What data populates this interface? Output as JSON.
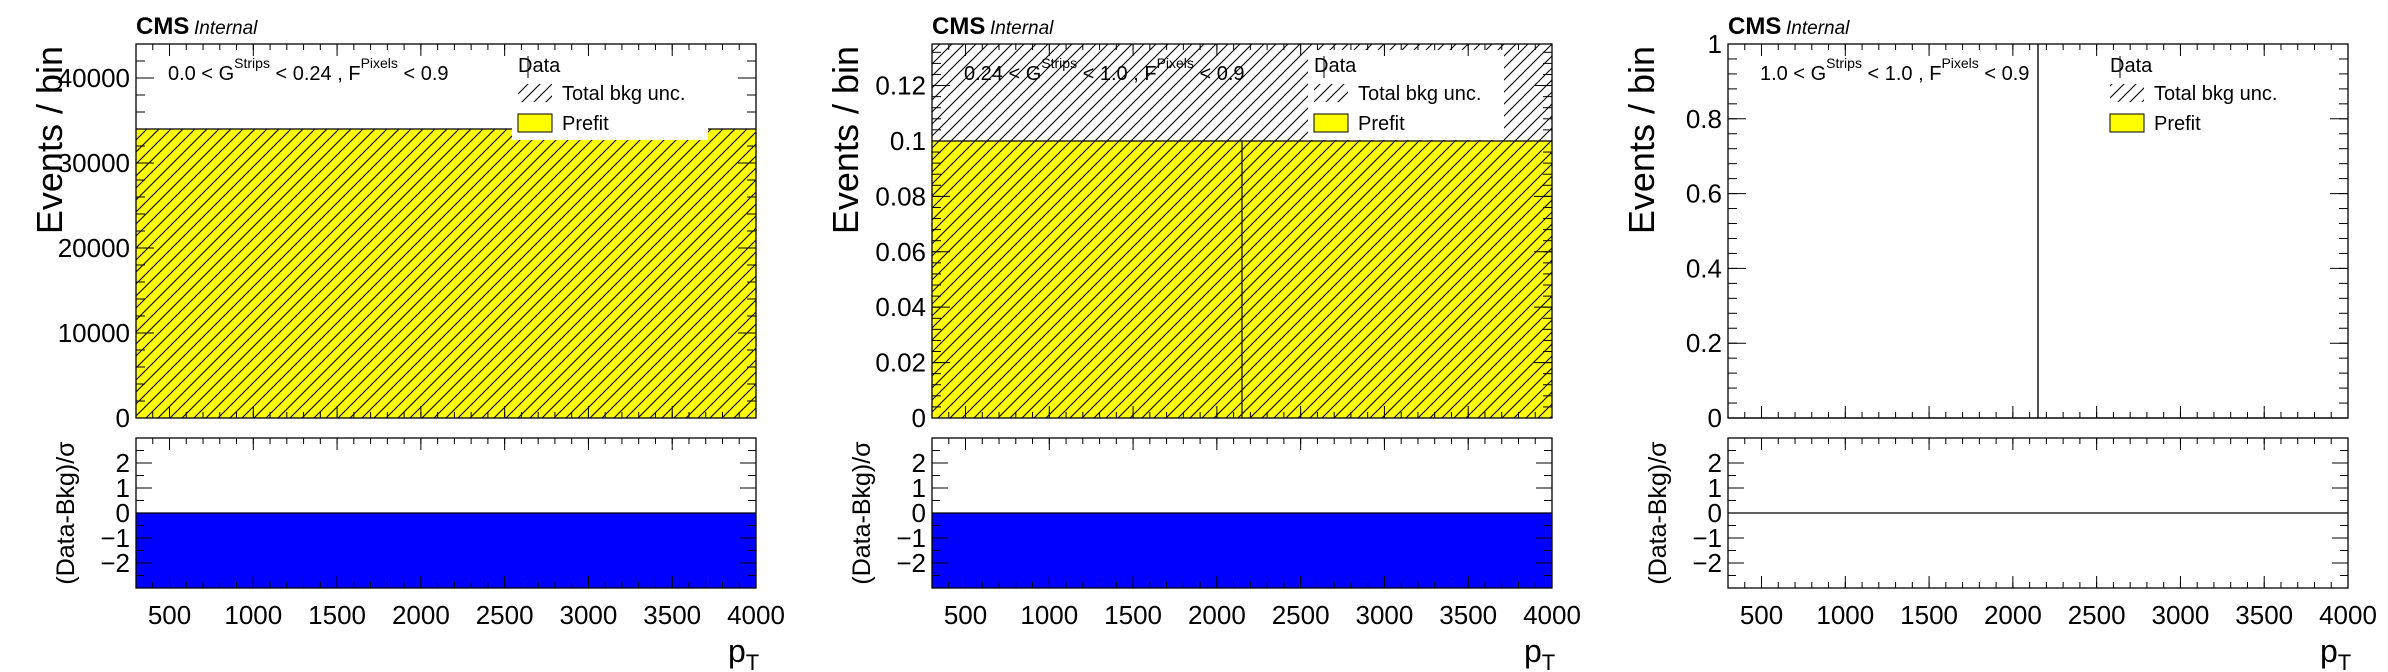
{
  "chart_data": [
    {
      "type": "bar",
      "header": {
        "experiment": "CMS",
        "status": "Internal"
      },
      "selection_label": {
        "g_range_lo": "0.0 < G",
        "g_sup": "Strips",
        "g_range_hi": " < 0.24 , F",
        "f_sup": "Pixels",
        "f_range_hi": " < 0.9"
      },
      "ylabel": "Events / bin",
      "xlabel": "p",
      "xlabel_sub": "T",
      "ratio_ylabel": "(Data-Bkg)/σ",
      "xlim": [
        300,
        4000
      ],
      "ylim": [
        0,
        44000
      ],
      "yticks": [
        0,
        10000,
        20000,
        30000,
        40000
      ],
      "xticks": [
        500,
        1000,
        1500,
        2000,
        2500,
        3000,
        3500,
        4000
      ],
      "ratio_ylim": [
        -3,
        3
      ],
      "ratio_yticks": [
        2,
        1,
        0,
        -1,
        -2
      ],
      "bins": [
        300,
        4000
      ],
      "prefit": [
        34000
      ],
      "bkg_unc": [
        34000
      ],
      "data": [
        0
      ],
      "ratio": [
        -3
      ],
      "legend": {
        "data": "Data",
        "unc": "Total bkg unc.",
        "prefit": "Prefit",
        "placement": "top-right"
      }
    },
    {
      "type": "bar",
      "header": {
        "experiment": "CMS",
        "status": "Internal"
      },
      "selection_label": {
        "g_range_lo": "0.24 < G",
        "g_sup": "Strips",
        "g_range_hi": " < 1.0 , F",
        "f_sup": "Pixels",
        "f_range_hi": " < 0.9"
      },
      "ylabel": "Events / bin",
      "xlabel": "p",
      "xlabel_sub": "T",
      "ratio_ylabel": "(Data-Bkg)/σ",
      "xlim": [
        300,
        4000
      ],
      "ylim": [
        0,
        0.135
      ],
      "yticks": [
        0,
        0.02,
        0.04,
        0.06,
        0.08,
        0.1,
        0.12
      ],
      "xticks": [
        500,
        1000,
        1500,
        2000,
        2500,
        3000,
        3500,
        4000
      ],
      "ratio_ylim": [
        -3,
        3
      ],
      "ratio_yticks": [
        2,
        1,
        0,
        -1,
        -2
      ],
      "bins": [
        300,
        2150,
        4000
      ],
      "prefit": [
        0.1,
        0.1
      ],
      "bkg_unc": [
        0.135,
        0.135
      ],
      "data": [
        0,
        0
      ],
      "ratio": [
        -3,
        -3
      ],
      "legend": {
        "data": "Data",
        "unc": "Total bkg unc.",
        "prefit": "Prefit",
        "placement": "top-right"
      }
    },
    {
      "type": "bar",
      "header": {
        "experiment": "CMS",
        "status": "Internal"
      },
      "selection_label": {
        "g_range_lo": "1.0 < G",
        "g_sup": "Strips",
        "g_range_hi": " < 1.0 , F",
        "f_sup": "Pixels",
        "f_range_hi": " < 0.9"
      },
      "ylabel": "Events / bin",
      "xlabel": "p",
      "xlabel_sub": "T",
      "ratio_ylabel": "(Data-Bkg)/σ",
      "xlim": [
        300,
        4000
      ],
      "ylim": [
        0,
        1
      ],
      "yticks": [
        0,
        0.2,
        0.4,
        0.6,
        0.8,
        1
      ],
      "xticks": [
        500,
        1000,
        1500,
        2000,
        2500,
        3000,
        3500,
        4000
      ],
      "ratio_ylim": [
        -3,
        3
      ],
      "ratio_yticks": [
        2,
        1,
        0,
        -1,
        -2
      ],
      "bins": [
        300,
        2150,
        4000
      ],
      "prefit": [
        0,
        0
      ],
      "bkg_unc": [
        0,
        0
      ],
      "data": [
        0,
        0
      ],
      "ratio": [
        0,
        0
      ],
      "legend": {
        "data": "Data",
        "unc": "Total bkg unc.",
        "prefit": "Prefit",
        "placement": "top-right"
      }
    }
  ],
  "colors": {
    "prefit": "#ffff00",
    "ratio_fill": "#0000ff",
    "frame": "#000000"
  }
}
